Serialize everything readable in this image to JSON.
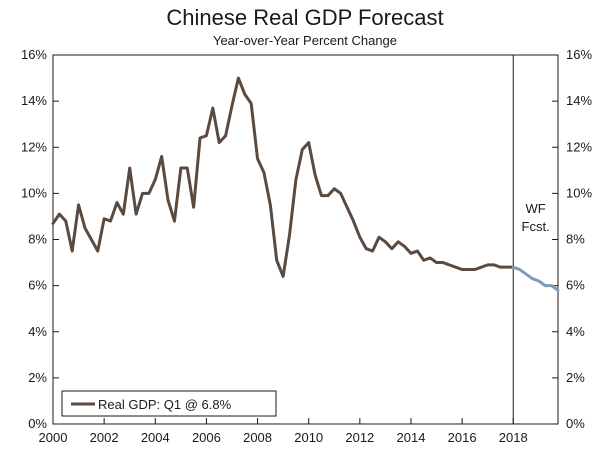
{
  "chart_data": {
    "type": "line",
    "title": "Chinese Real GDP Forecast",
    "subtitle": "Year-over-Year Percent Change",
    "xlim": [
      2000,
      2019.75
    ],
    "ylim": [
      0,
      16
    ],
    "x_ticks": [
      "2000",
      "2002",
      "2004",
      "2006",
      "2008",
      "2010",
      "2012",
      "2014",
      "2016",
      "2018"
    ],
    "y_ticks_left": [
      "0%",
      "2%",
      "4%",
      "6%",
      "8%",
      "10%",
      "12%",
      "14%",
      "16%"
    ],
    "y_ticks_right": [
      "0%",
      "2%",
      "4%",
      "6%",
      "8%",
      "10%",
      "12%",
      "14%",
      "16%"
    ],
    "forecast_start": 2018,
    "forecast_label": [
      "WF",
      "Fcst."
    ],
    "legend": {
      "label": "Real GDP: Q1 @ 6.8%",
      "placement": "bottom-left"
    },
    "colors": {
      "actual": "#5a4a40",
      "forecast": "#7f9bb5",
      "axis": "#1a1a1a"
    },
    "series": [
      {
        "name": "Real GDP: Q1 @ 6.8%",
        "x": [
          2000.0,
          2000.25,
          2000.5,
          2000.75,
          2001.0,
          2001.25,
          2001.5,
          2001.75,
          2002.0,
          2002.25,
          2002.5,
          2002.75,
          2003.0,
          2003.25,
          2003.5,
          2003.75,
          2004.0,
          2004.25,
          2004.5,
          2004.75,
          2005.0,
          2005.25,
          2005.5,
          2005.75,
          2006.0,
          2006.25,
          2006.5,
          2006.75,
          2007.0,
          2007.25,
          2007.5,
          2007.75,
          2008.0,
          2008.25,
          2008.5,
          2008.75,
          2009.0,
          2009.25,
          2009.5,
          2009.75,
          2010.0,
          2010.25,
          2010.5,
          2010.75,
          2011.0,
          2011.25,
          2011.5,
          2011.75,
          2012.0,
          2012.25,
          2012.5,
          2012.75,
          2013.0,
          2013.25,
          2013.5,
          2013.75,
          2014.0,
          2014.25,
          2014.5,
          2014.75,
          2015.0,
          2015.25,
          2015.5,
          2015.75,
          2016.0,
          2016.25,
          2016.5,
          2016.75,
          2017.0,
          2017.25,
          2017.5,
          2017.75,
          2018.0
        ],
        "values": [
          8.7,
          9.1,
          8.8,
          7.5,
          9.5,
          8.5,
          8.0,
          7.5,
          8.9,
          8.8,
          9.6,
          9.1,
          11.1,
          9.1,
          10.0,
          10.0,
          10.6,
          11.6,
          9.7,
          8.8,
          11.1,
          11.1,
          9.4,
          12.4,
          12.5,
          13.7,
          12.2,
          12.5,
          13.8,
          15.0,
          14.3,
          13.9,
          11.5,
          10.9,
          9.5,
          7.1,
          6.4,
          8.2,
          10.6,
          11.9,
          12.2,
          10.8,
          9.9,
          9.9,
          10.2,
          10.0,
          9.4,
          8.8,
          8.1,
          7.6,
          7.5,
          8.1,
          7.9,
          7.6,
          7.9,
          7.7,
          7.4,
          7.5,
          7.1,
          7.2,
          7.0,
          7.0,
          6.9,
          6.8,
          6.7,
          6.7,
          6.7,
          6.8,
          6.9,
          6.9,
          6.8,
          6.8,
          6.8
        ]
      },
      {
        "name": "WF Fcst.",
        "x": [
          2018.0,
          2018.25,
          2018.5,
          2018.75,
          2019.0,
          2019.25,
          2019.5,
          2019.75
        ],
        "values": [
          6.8,
          6.7,
          6.5,
          6.3,
          6.2,
          6.0,
          6.0,
          5.8
        ]
      }
    ]
  }
}
